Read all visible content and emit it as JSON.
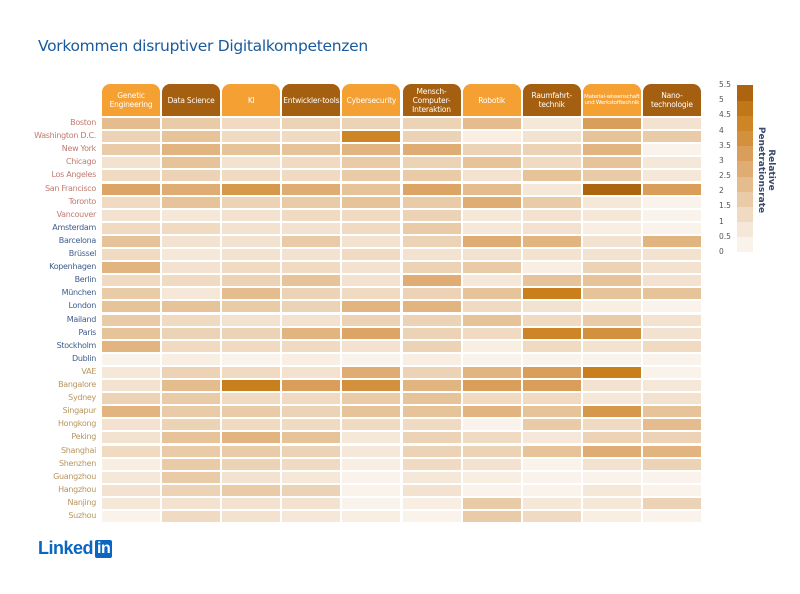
{
  "chart_data": {
    "type": "heatmap",
    "title": "Vorkommen disruptiver Digitalkompetenzen",
    "columns": [
      "Genetic Engineering",
      "Data Science",
      "KI",
      "Entwickler-tools",
      "Cybersecurity",
      "Mensch-Computer-Interaktion",
      "Robotik",
      "Raumfahrt-technik",
      "Material-wissenschaft und Werkstofftechnik",
      "Nano-technologie"
    ],
    "column_colors": [
      "#f5a033",
      "#a45f10",
      "#f5a033",
      "#a45f10",
      "#f5a033",
      "#a45f10",
      "#f5a033",
      "#a45f10",
      "#f5a033",
      "#a45f10"
    ],
    "rows": [
      "Boston",
      "Washington D.C.",
      "New York",
      "Chicago",
      "Los Angeles",
      "San Francisco",
      "Toronto",
      "Vancouver",
      "Amsterdam",
      "Barcelona",
      "Brüssel",
      "Kopenhagen",
      "Berlin",
      "München",
      "London",
      "Mailand",
      "Paris",
      "Stockholm",
      "Dublin",
      "VAE",
      "Bangalore",
      "Sydney",
      "Singapur",
      "Hongkong",
      "Peking",
      "Shanghai",
      "Shenzhen",
      "Guangzhou",
      "Hangzhou",
      "Nanjing",
      "Suzhou"
    ],
    "row_regions": [
      "na",
      "na",
      "na",
      "na",
      "na",
      "na",
      "na",
      "na",
      "eu",
      "eu",
      "eu",
      "eu",
      "eu",
      "eu",
      "eu",
      "eu",
      "eu",
      "eu",
      "eu",
      "other",
      "other",
      "other",
      "other",
      "other",
      "other",
      "other",
      "other",
      "other",
      "other",
      "other",
      "other"
    ],
    "region_colors": {
      "na": "#c07a70",
      "eu": "#3f5d8c",
      "other": "#b8955e"
    },
    "values": [
      [
        2.25,
        1.75,
        1.25,
        1.5,
        1.5,
        1.5,
        2.25,
        0.75,
        3.25,
        1
      ],
      [
        1.5,
        2,
        1.25,
        1.25,
        4.25,
        1.5,
        0.5,
        1,
        2,
        1.75
      ],
      [
        1.75,
        2.5,
        2,
        2,
        2.5,
        2.75,
        1.5,
        1.5,
        2.5,
        0.25
      ],
      [
        1,
        2,
        1,
        1.25,
        1.75,
        1.5,
        2,
        1.25,
        2,
        0.75
      ],
      [
        1.25,
        1.5,
        1.25,
        1.25,
        1.75,
        1.75,
        1,
        2,
        1.75,
        0.75
      ],
      [
        3,
        2.75,
        3.5,
        2.75,
        2,
        3,
        2.25,
        0.75,
        5.25,
        3.25
      ],
      [
        1.25,
        2,
        1.5,
        1.75,
        2,
        1.75,
        2.75,
        1.75,
        0.75,
        0.25
      ],
      [
        1,
        0.75,
        1,
        1.25,
        1.25,
        1.5,
        0.75,
        1,
        0.75,
        0.25
      ],
      [
        1.25,
        1.25,
        1,
        1,
        1.25,
        1.75,
        0.75,
        1,
        0.5,
        0.25
      ],
      [
        2,
        1,
        1,
        1.75,
        1,
        1.5,
        2.75,
        2.5,
        1,
        2.5
      ],
      [
        1.25,
        0.75,
        1,
        1,
        1.25,
        1,
        1,
        1,
        1,
        1
      ],
      [
        2.5,
        1,
        1.25,
        1.25,
        1,
        1.5,
        1.75,
        0.5,
        1.5,
        1
      ],
      [
        1.25,
        1.25,
        1.5,
        2,
        1,
        2.75,
        0.75,
        2,
        2,
        1
      ],
      [
        1.75,
        0.75,
        2.25,
        1.5,
        1.25,
        1.5,
        2,
        4.5,
        2,
        2
      ],
      [
        2,
        2,
        1.75,
        1.5,
        2.5,
        2.5,
        1.25,
        1,
        0.5,
        0.25
      ],
      [
        1.75,
        1.25,
        1,
        1,
        1.5,
        1.5,
        2,
        1.25,
        1.75,
        1
      ],
      [
        2,
        1.5,
        1.5,
        2.5,
        3,
        1.5,
        1.25,
        4.25,
        3.75,
        1
      ],
      [
        2.5,
        1.25,
        1.25,
        1.25,
        1,
        1.5,
        0.5,
        1.25,
        1,
        1.25
      ],
      [
        0.25,
        0.5,
        0.25,
        0.5,
        0.25,
        0.5,
        0.25,
        0.25,
        0.25,
        0.25
      ],
      [
        0.75,
        1.5,
        1.25,
        1,
        2.75,
        1.5,
        2.5,
        3.25,
        4.5,
        0.25
      ],
      [
        1,
        2.25,
        4.5,
        3.25,
        3.75,
        2.5,
        3.25,
        3.25,
        1,
        0.75
      ],
      [
        1.5,
        1.75,
        1.25,
        1.25,
        1.75,
        2,
        1.25,
        1.25,
        0.75,
        1
      ],
      [
        2.5,
        1.75,
        1.75,
        1.5,
        2,
        2,
        2.5,
        2,
        3.5,
        2
      ],
      [
        1,
        1.5,
        1.25,
        1.25,
        1.25,
        1.25,
        0.25,
        1.75,
        1.25,
        2.25
      ],
      [
        1,
        2,
        2.5,
        2,
        0.75,
        1.5,
        1.25,
        0.75,
        1.5,
        1.5
      ],
      [
        1.25,
        1.75,
        1.75,
        1.5,
        0.75,
        1.5,
        1.5,
        2,
        2.75,
        2.5
      ],
      [
        0.5,
        1.75,
        1.5,
        1.25,
        0.5,
        1.25,
        1,
        0.25,
        1,
        1.5
      ],
      [
        0.75,
        1.75,
        1,
        0.75,
        0.25,
        0.75,
        0.5,
        0.25,
        0.25,
        0.25
      ],
      [
        1,
        1.5,
        1.75,
        1.5,
        0.25,
        1,
        0.25,
        0.25,
        0.75,
        0.25
      ],
      [
        0.75,
        1,
        1,
        1,
        0.25,
        0.5,
        1.75,
        0.75,
        0.75,
        1.5
      ],
      [
        0.25,
        1.25,
        1,
        0.75,
        0.5,
        0.25,
        1.75,
        1.25,
        0.5,
        0.25
      ]
    ],
    "colorbar": {
      "label": "Relative Penetrationsrate",
      "min": 0,
      "max": 5.5,
      "step": 0.5,
      "ticks": [
        "0",
        "0.5",
        "1",
        "1.5",
        "2",
        "2.5",
        "3",
        "3.5",
        "4",
        "4.5",
        "5",
        "5.5"
      ]
    },
    "color_low": "#fcf9f5",
    "color_high": "#a35a0a"
  },
  "logo": {
    "text": "Linked",
    "badge": "in"
  }
}
